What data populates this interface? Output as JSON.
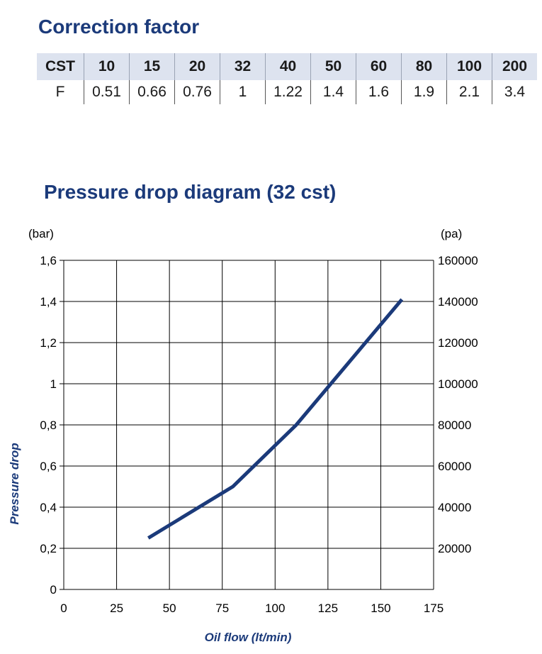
{
  "correction": {
    "title": "Correction factor",
    "header_label": "CST",
    "row_label": "F",
    "cst": [
      "10",
      "15",
      "20",
      "32",
      "40",
      "50",
      "60",
      "80",
      "100",
      "200"
    ],
    "f": [
      "0.51",
      "0.66",
      "0.76",
      "1",
      "1.22",
      "1.4",
      "1.6",
      "1.9",
      "2.1",
      "3.4"
    ]
  },
  "chart_data": {
    "type": "line",
    "title": "Pressure drop diagram (32 cst)",
    "xlabel": "Oil flow  (lt/min)",
    "ylabel": "Pressure drop",
    "y_unit_left": "(bar)",
    "y_unit_right": "(pa)",
    "xlim": [
      0,
      175
    ],
    "ylim": [
      0,
      1.6
    ],
    "x_ticks": [
      "0",
      "25",
      "50",
      "75",
      "100",
      "125",
      "150",
      "175"
    ],
    "y_ticks_left": [
      "0",
      "0,2",
      "0,4",
      "0,6",
      "0,8",
      "1",
      "1,2",
      "1,4",
      "1,6"
    ],
    "y_ticks_right": [
      "20000",
      "40000",
      "60000",
      "80000",
      "100000",
      "120000",
      "140000",
      "160000"
    ],
    "grid": true,
    "series": [
      {
        "x": [
          40,
          80,
          110,
          160
        ],
        "y": [
          0.25,
          0.5,
          0.8,
          1.41
        ]
      }
    ],
    "line_color": "#1b3a7a"
  }
}
